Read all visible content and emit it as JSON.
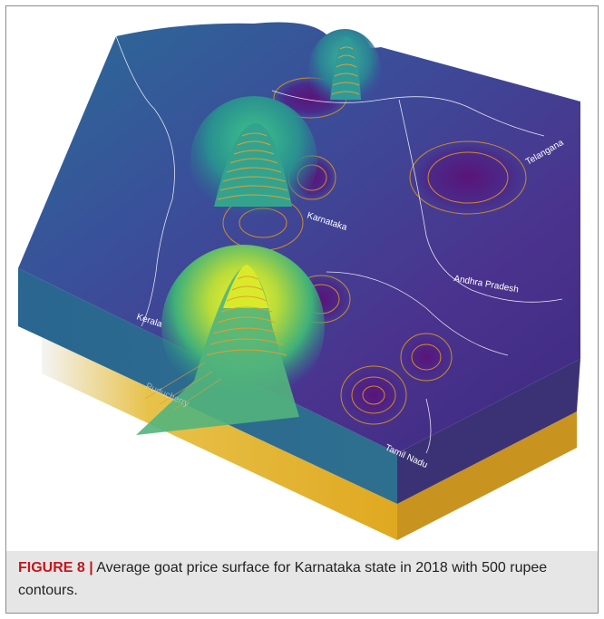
{
  "figure": {
    "label": "FIGURE 8 |",
    "caption_text": "Average goat price surface for Karnataka state in 2018 with 500 rupee contours."
  },
  "map_labels": {
    "telangana": "Telangana",
    "karnataka": "Karnataka",
    "andhra": "Andhra Pradesh",
    "kerala": "Kerala",
    "puducherry": "Puducherry",
    "tamil_nadu": "Tamil Nadu"
  },
  "colors": {
    "surface_low": "#4a2a8a",
    "surface_mid": "#2f6fa0",
    "surface_high": "#e8e81a",
    "contour": "#d08a2a",
    "base_side": "#e0b12a"
  }
}
